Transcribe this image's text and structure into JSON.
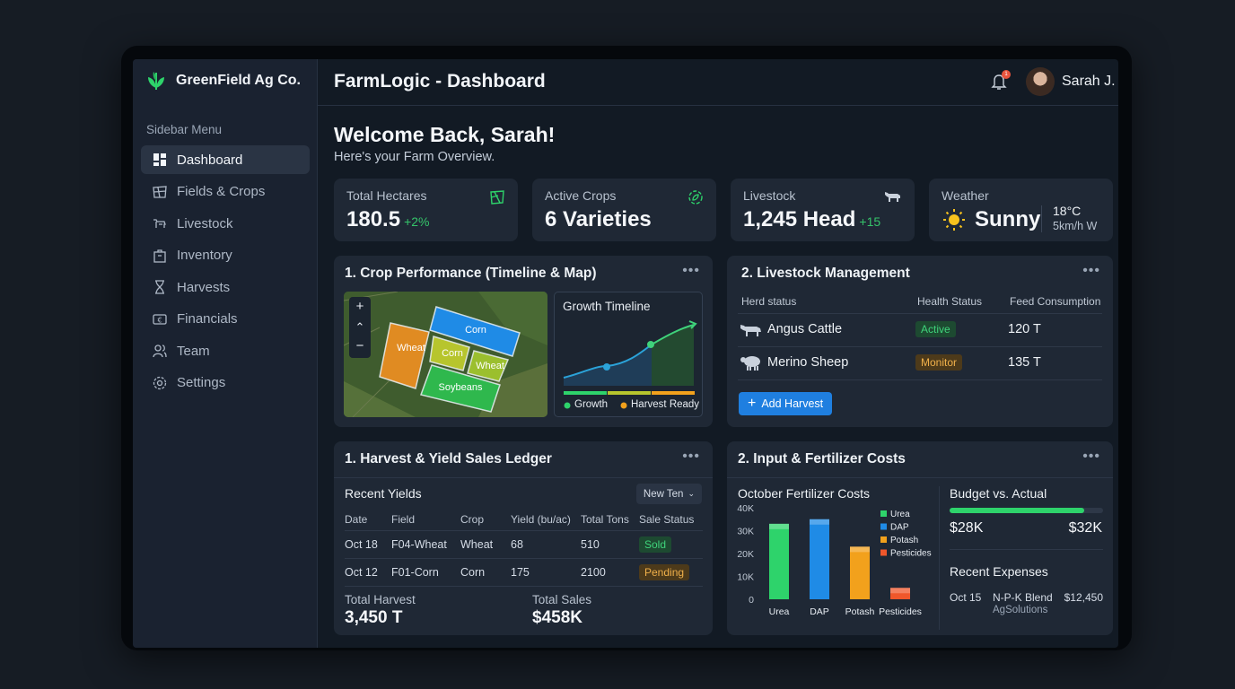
{
  "brand": {
    "name": "GreenField Ag Co."
  },
  "sidebar": {
    "heading": "Sidebar Menu",
    "items": [
      {
        "label": "Dashboard",
        "icon": "dashboard-icon",
        "active": true
      },
      {
        "label": "Fields & Crops",
        "icon": "fields-icon"
      },
      {
        "label": "Livestock",
        "icon": "livestock-icon"
      },
      {
        "label": "Inventory",
        "icon": "inventory-icon"
      },
      {
        "label": "Harvests",
        "icon": "harvest-icon"
      },
      {
        "label": "Financials",
        "icon": "financials-icon"
      },
      {
        "label": "Team",
        "icon": "team-icon"
      },
      {
        "label": "Settings",
        "icon": "settings-icon"
      }
    ]
  },
  "header": {
    "title": "FarmLogic - Dashboard",
    "notification_count": "1",
    "user_name": "Sarah J."
  },
  "welcome": {
    "title": "Welcome Back, Sarah!",
    "subtitle": "Here's your Farm Overview."
  },
  "stats": {
    "hectares": {
      "label": "Total Hectares",
      "value": "180.5",
      "delta": "+2%"
    },
    "crops": {
      "label": "Active Crops",
      "value": "6 Varieties"
    },
    "livestock": {
      "label": "Livestock",
      "value": "1,245 Head",
      "delta": "+15"
    },
    "weather": {
      "label": "Weather",
      "value": "Sunny",
      "temp": "18°C",
      "wind": "5km/h W"
    }
  },
  "crop_panel": {
    "title": "1. Crop Performance (Timeline & Map)",
    "map": {
      "zoom_in": "+",
      "up": "⌃",
      "zoom_out": "−",
      "fields": [
        "Corn",
        "Wheat",
        "Corn",
        "Wheat",
        "Soybeans"
      ]
    },
    "timeline": {
      "title": "Growth Timeline",
      "legend": [
        "Growth",
        "Harvest Ready"
      ]
    }
  },
  "livestock_panel": {
    "title": "2. Livestock Management",
    "columns": [
      "Herd status",
      "Health Status",
      "Feed Consumption"
    ],
    "rows": [
      {
        "name": "Angus Cattle",
        "status": "Active",
        "feed": "120 T"
      },
      {
        "name": "Merino Sheep",
        "status": "Monitor",
        "feed": "135 T"
      }
    ],
    "button": "Add Harvest"
  },
  "ledger": {
    "title": "1. Harvest & Yield Sales Ledger",
    "subtitle": "Recent Yields",
    "dropdown": "New Ten",
    "columns": [
      "Date",
      "Field",
      "Crop",
      "Yield (bu/ac)",
      "Total Tons",
      "Sale Status"
    ],
    "rows": [
      {
        "date": "Oct 18",
        "field": "F04-Wheat",
        "crop": "Wheat",
        "yield": "68",
        "tons": "510",
        "status": "Sold"
      },
      {
        "date": "Oct 12",
        "field": "F01-Corn",
        "crop": "Corn",
        "yield": "175",
        "tons": "2100",
        "status": "Pending"
      }
    ],
    "total_harvest_label": "Total Harvest",
    "total_harvest": "3,450 T",
    "total_sales_label": "Total Sales",
    "total_sales": "$458K"
  },
  "costs": {
    "title": "2. Input & Fertilizer Costs",
    "chart_title": "October Fertilizer Costs",
    "budget_title": "Budget vs. Actual",
    "budget_progress": 0.88,
    "budget_actual": "$28K",
    "budget_total": "$32K",
    "expenses_title": "Recent Expenses",
    "expense": {
      "date": "Oct 15",
      "item": "N-P-K Blend",
      "vendor": "AgSolutions",
      "amount": "$12,450"
    }
  },
  "chart_data": {
    "type": "bar",
    "title": "October Fertilizer Costs",
    "categories": [
      "Urea",
      "DAP",
      "Potash",
      "Pesticides"
    ],
    "values": [
      33,
      35,
      23,
      5
    ],
    "colors": [
      "#2ed36b",
      "#1f8be6",
      "#f2a11c",
      "#f0572b"
    ],
    "y_ticks": [
      "0",
      "10K",
      "20K",
      "30K",
      "40K"
    ],
    "ylim": [
      0,
      40
    ],
    "legend": [
      "Urea",
      "DAP",
      "Potash",
      "Pesticides"
    ],
    "legend_position": "right",
    "grid": false
  }
}
